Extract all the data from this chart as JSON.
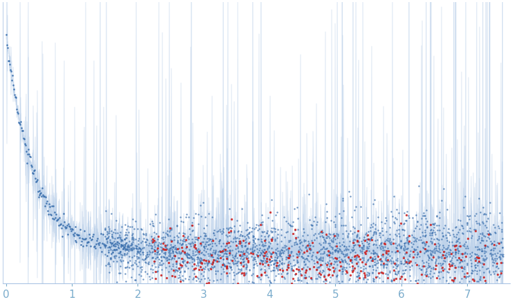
{
  "title": "",
  "xlabel": "",
  "ylabel": "",
  "xlim": [
    -0.05,
    7.65
  ],
  "ylim": [
    -0.015,
    0.16
  ],
  "background_color": "#ffffff",
  "blue_dot_color": "#3a6fad",
  "red_dot_color": "#cc2222",
  "error_fill_color": "#ccddf0",
  "error_line_color": "#aac4e4",
  "xticks": [
    0,
    1,
    2,
    3,
    4,
    5,
    6,
    7
  ],
  "xtick_color": "#7aaccc",
  "tick_fontsize": 11,
  "seed": 42
}
